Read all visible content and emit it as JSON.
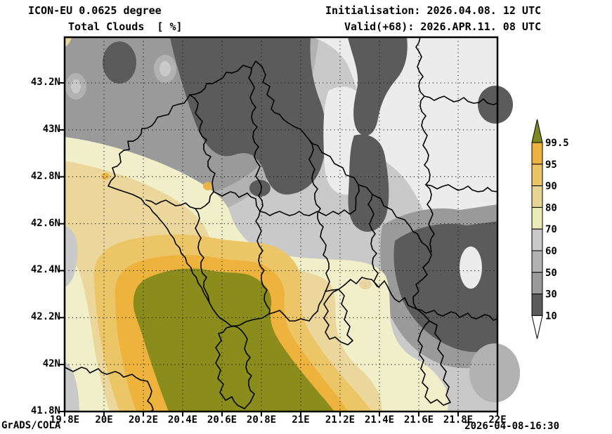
{
  "header": {
    "model_line": "ICON-EU 0.0625 degree",
    "variable_line": "Total Clouds  [ %]",
    "init_line": "Initialisation: 2026.04.08. 12 UTC",
    "valid_line": "Valid(+68): 2026.APR.11. 08 UTC"
  },
  "footer": {
    "left": "GrADS/COLA",
    "right": "2026-04-08-16:30"
  },
  "axes": {
    "lat_ticks": [
      "43.2N",
      "43N",
      "42.8N",
      "42.6N",
      "42.4N",
      "42.2N",
      "42N",
      "41.8N"
    ],
    "lon_ticks": [
      "19.8E",
      "20E",
      "20.2E",
      "20.4E",
      "20.6E",
      "20.8E",
      "21E",
      "21.2E",
      "21.4E",
      "21.6E",
      "21.8E",
      "22E"
    ]
  },
  "colorbar": {
    "labels": [
      "99.5",
      "95",
      "90",
      "80",
      "70",
      "60",
      "50",
      "30",
      "10"
    ],
    "segment_colors_top_to_bottom": [
      "#edb340",
      "#eac466",
      "#e8d494",
      "#e9ecb4",
      "#c9c9c9",
      "#b2b2b2",
      "#9a9a9a",
      "#5b5b5b"
    ],
    "arrow_top_color": "#7d8a1e",
    "arrow_bottom_color": "#ffffff",
    "units": "%"
  },
  "palette": {
    "clear_lt10": "#ececec",
    "p10_30": "#5b5b5b",
    "p30_50": "#9a9a9a",
    "p50_60": "#b2b2b2",
    "p60_70": "#c9c9c9",
    "p70_80": "#f1efc9",
    "p80_90": "#ebd79c",
    "p90_95": "#ecc567",
    "p95_995": "#edb33c",
    "gt995": "#8a8c1c"
  }
}
